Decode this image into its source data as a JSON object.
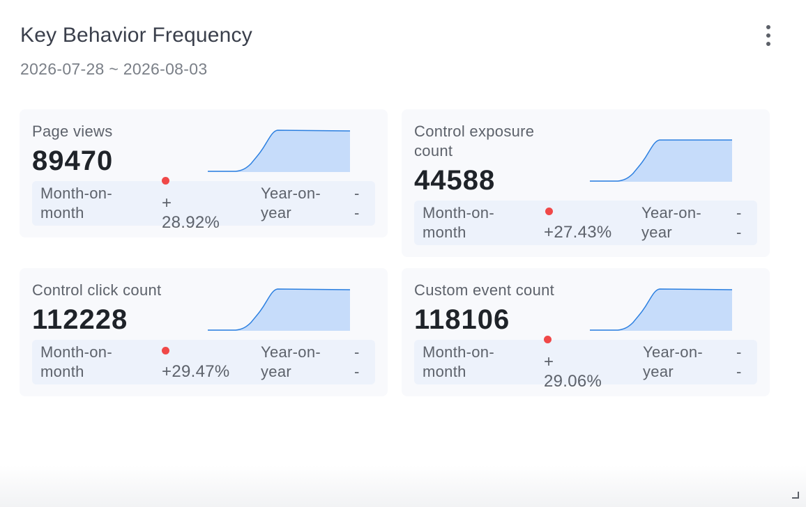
{
  "widget": {
    "title": "Key Behavior Frequency",
    "date_range": "2026-07-28 ~ 2026-08-03",
    "more_icon": "vertical-ellipsis-icon",
    "resize_icon": "resize-corner-icon"
  },
  "colors": {
    "card_bg": "#f8f9fc",
    "compare_bg": "#edf2fb",
    "sparkline_line": "#2b7fe0",
    "sparkline_fill": "#c6dcfa",
    "increase_dot": "#f04848"
  },
  "cards": [
    {
      "label": "Page views",
      "value": "89470",
      "mom_label": "Month-on-\nmonth",
      "mom_value": "+\n28.92%",
      "yoy_label": "Year-on-\nyear",
      "yoy_value": "-\n-"
    },
    {
      "label": "Control exposure count",
      "value": "44588",
      "mom_label": "Month-on-\nmonth",
      "mom_value": "+27.43%",
      "yoy_label": "Year-on-\nyear",
      "yoy_value": "-\n-"
    },
    {
      "label": "Control click count",
      "value": "112228",
      "mom_label": "Month-on-\nmonth",
      "mom_value": "+29.47%",
      "yoy_label": "Year-on-\nyear",
      "yoy_value": "-\n-"
    },
    {
      "label": "Custom event count",
      "value": "118106",
      "mom_label": "Month-on-\nmonth",
      "mom_value": "+\n29.06%",
      "yoy_label": "Year-on-\nyear",
      "yoy_value": "-\n-"
    }
  ]
}
